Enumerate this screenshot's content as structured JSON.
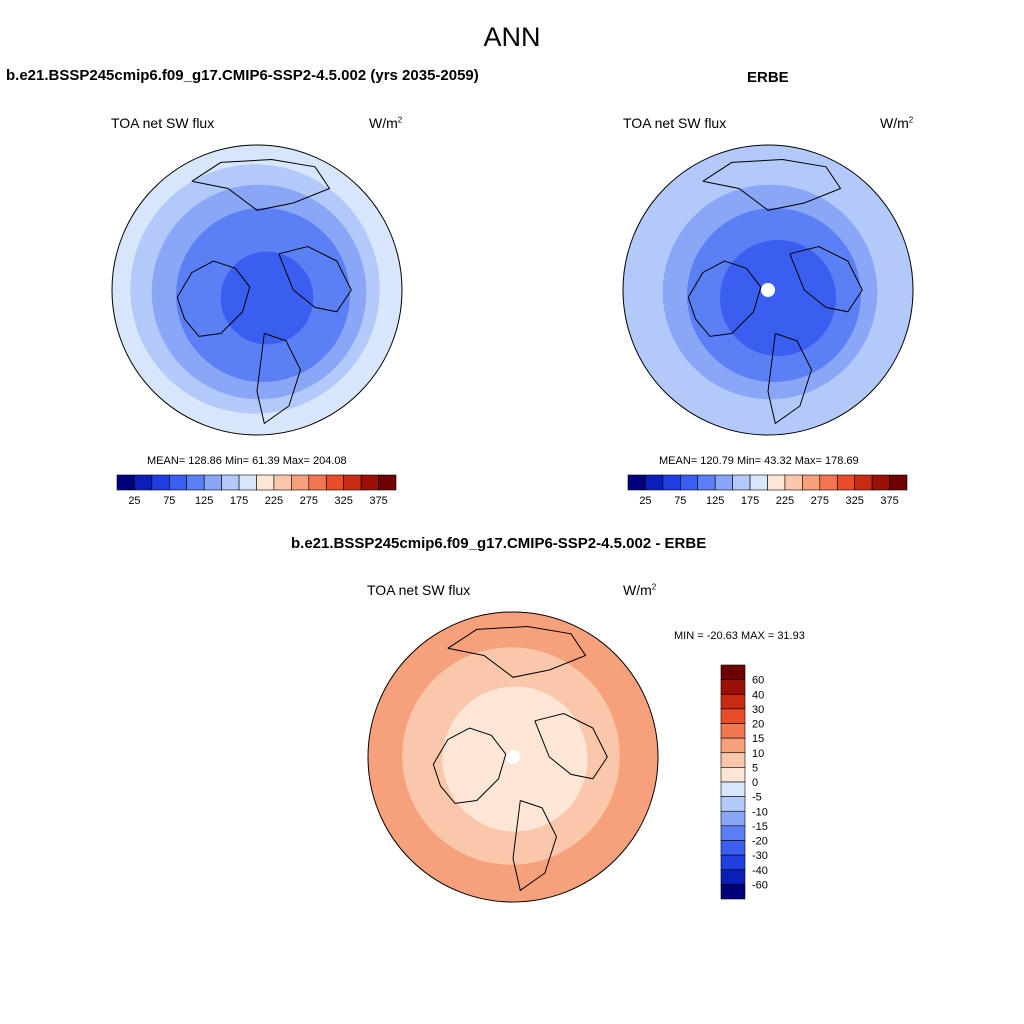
{
  "page": {
    "title": "ANN"
  },
  "chart_data": [
    {
      "type": "heatmap",
      "projection": "north-polar-stereographic",
      "title": "b.e21.BSSP245cmip6.f09_g17.CMIP6-SSP2-4.5.002 (yrs 2035-2059)",
      "variable": "TOA net SW flux",
      "units": "W/m",
      "units_superscript": "2",
      "stats": {
        "mean": "128.86",
        "min": "61.39",
        "max": "204.08"
      },
      "stats_text": "MEAN= 128.86  Min=  61.39  Max= 204.08",
      "colorbar": {
        "orientation": "horizontal",
        "levels": [
          25,
          50,
          75,
          100,
          125,
          150,
          175,
          200,
          225,
          250,
          275,
          300,
          325,
          350,
          375
        ],
        "tick_labels": [
          "25",
          "75",
          "125",
          "175",
          "225",
          "275",
          "325",
          "375"
        ]
      },
      "field_rings": [
        {
          "value": 190,
          "outer_fraction": 1.0
        },
        {
          "value": 160,
          "outer_fraction": 0.86
        },
        {
          "value": 140,
          "outer_fraction": 0.74
        },
        {
          "value": 110,
          "outer_fraction": 0.6
        },
        {
          "value": 85,
          "outer_fraction": 0.32
        }
      ],
      "pole_missing": false
    },
    {
      "type": "heatmap",
      "projection": "north-polar-stereographic",
      "title": "ERBE",
      "variable": "TOA net SW flux",
      "units": "W/m",
      "units_superscript": "2",
      "stats": {
        "mean": "120.79",
        "min": "43.32",
        "max": "178.69"
      },
      "stats_text": "MEAN= 120.79  Min=  43.32  Max= 178.69",
      "colorbar": {
        "orientation": "horizontal",
        "levels": [
          25,
          50,
          75,
          100,
          125,
          150,
          175,
          200,
          225,
          250,
          275,
          300,
          325,
          350,
          375
        ],
        "tick_labels": [
          "25",
          "75",
          "125",
          "175",
          "225",
          "275",
          "325",
          "375"
        ]
      },
      "field_rings": [
        {
          "value": 170,
          "outer_fraction": 1.0
        },
        {
          "value": 150,
          "outer_fraction": 0.86
        },
        {
          "value": 130,
          "outer_fraction": 0.74
        },
        {
          "value": 105,
          "outer_fraction": 0.6
        },
        {
          "value": 80,
          "outer_fraction": 0.4
        }
      ],
      "pole_missing": true
    },
    {
      "type": "heatmap",
      "projection": "north-polar-stereographic",
      "title": "b.e21.BSSP245cmip6.f09_g17.CMIP6-SSP2-4.5.002 - ERBE",
      "variable": "TOA net SW flux",
      "units": "W/m",
      "units_superscript": "2",
      "stats": {
        "min": "-20.63",
        "max": "31.93"
      },
      "stats_text": "MIN = -20.63 MAX =  31.93",
      "colorbar": {
        "orientation": "vertical",
        "levels": [
          -60,
          -40,
          -30,
          -20,
          -15,
          -10,
          -5,
          0,
          5,
          10,
          15,
          20,
          30,
          40,
          60
        ],
        "tick_labels": [
          "60",
          "40",
          "30",
          "20",
          "15",
          "10",
          "5",
          "0",
          "-5",
          "-10",
          "-15",
          "-20",
          "-30",
          "-40",
          "-60"
        ]
      },
      "field_rings": [
        {
          "value": 12,
          "outer_fraction": 1.0
        },
        {
          "value": 7,
          "outer_fraction": 0.75
        },
        {
          "value": 3,
          "outer_fraction": 0.5
        }
      ],
      "pole_missing": true
    }
  ],
  "palettes": {
    "absolute": [
      "#00007a",
      "#0a1fb8",
      "#1f3fe0",
      "#3a5ef0",
      "#5b80f5",
      "#8aa7f7",
      "#b3c9fa",
      "#d8e6fc",
      "#fde6d6",
      "#fbc7ab",
      "#f7a07c",
      "#f27650",
      "#e84c28",
      "#c82a12",
      "#9a1005",
      "#6e0000"
    ],
    "difference": [
      "#00007a",
      "#0a1fb8",
      "#1f3fe0",
      "#3a5ef0",
      "#5b80f5",
      "#8aa7f7",
      "#b3c9fa",
      "#d8e6fc",
      "#fde6d6",
      "#fbc7ab",
      "#f7a07c",
      "#f27650",
      "#e84c28",
      "#c82a12",
      "#9a1005",
      "#6e0000"
    ],
    "map_background": "#ffffff",
    "coastline": "#000000"
  }
}
